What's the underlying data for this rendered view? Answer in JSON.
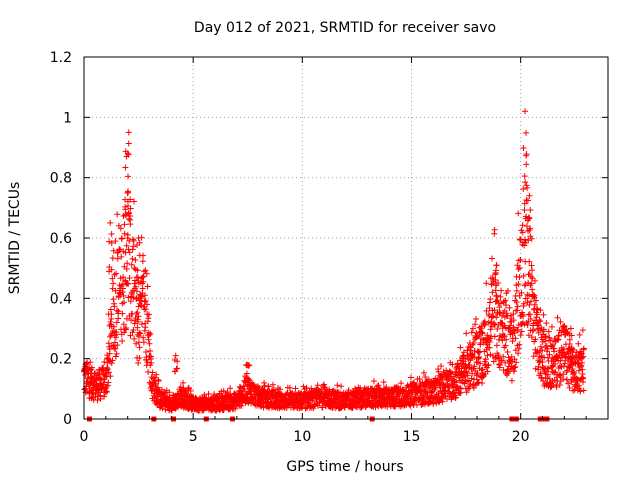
{
  "chart_data": {
    "type": "scatter",
    "title": "Day 012 of 2021, SRMTID for receiver savo",
    "xlabel": "GPS time / hours",
    "ylabel": "SRMTID / TECUs",
    "xlim": [
      0,
      24
    ],
    "ylim": [
      0,
      1.2
    ],
    "x_ticks": [
      0,
      5,
      10,
      15,
      20
    ],
    "x_tick_labels": [
      "0",
      "5",
      "10",
      "15",
      "20"
    ],
    "y_ticks": [
      0,
      0.2,
      0.4,
      0.6,
      0.8,
      1.0,
      1.2
    ],
    "y_tick_labels": [
      "0",
      "0.2",
      "0.4",
      "0.6",
      "0.8",
      "1",
      "1.2"
    ],
    "grid": true,
    "marker": "+",
    "color": "#ff0000",
    "envelope": {
      "description": "approximate typical SRMTID level vs GPS hour (points scatter around it)",
      "x": [
        0,
        0.5,
        1.0,
        1.4,
        1.7,
        2.0,
        2.2,
        2.5,
        2.8,
        3.1,
        3.5,
        4.0,
        4.5,
        5,
        6,
        7,
        7.5,
        8,
        9,
        10,
        11,
        12,
        13,
        14,
        15,
        16,
        17,
        17.8,
        18.3,
        18.8,
        19.2,
        19.6,
        20.0,
        20.3,
        20.6,
        21.0,
        21.5,
        22.0,
        22.5,
        22.9
      ],
      "y": [
        0.14,
        0.11,
        0.12,
        0.35,
        0.45,
        0.55,
        0.45,
        0.3,
        0.38,
        0.12,
        0.06,
        0.05,
        0.07,
        0.05,
        0.05,
        0.06,
        0.1,
        0.07,
        0.06,
        0.06,
        0.07,
        0.06,
        0.07,
        0.07,
        0.08,
        0.09,
        0.12,
        0.18,
        0.22,
        0.35,
        0.28,
        0.22,
        0.45,
        0.55,
        0.3,
        0.2,
        0.18,
        0.22,
        0.15,
        0.17
      ]
    },
    "peaks": [
      {
        "x": 1.2,
        "y": 0.65
      },
      {
        "x": 1.95,
        "y": 0.87
      },
      {
        "x": 2.05,
        "y": 0.95
      },
      {
        "x": 2.5,
        "y": 0.6
      },
      {
        "x": 4.2,
        "y": 0.21
      },
      {
        "x": 7.5,
        "y": 0.18
      },
      {
        "x": 18.9,
        "y": 0.51
      },
      {
        "x": 20.2,
        "y": 1.02
      },
      {
        "x": 20.4,
        "y": 0.74
      },
      {
        "x": 22.3,
        "y": 0.3
      }
    ],
    "zero_points_x": [
      0.25,
      3.2,
      4.1,
      5.6,
      6.8,
      13.2,
      19.6,
      19.8,
      20.9,
      21.0,
      21.2
    ]
  }
}
